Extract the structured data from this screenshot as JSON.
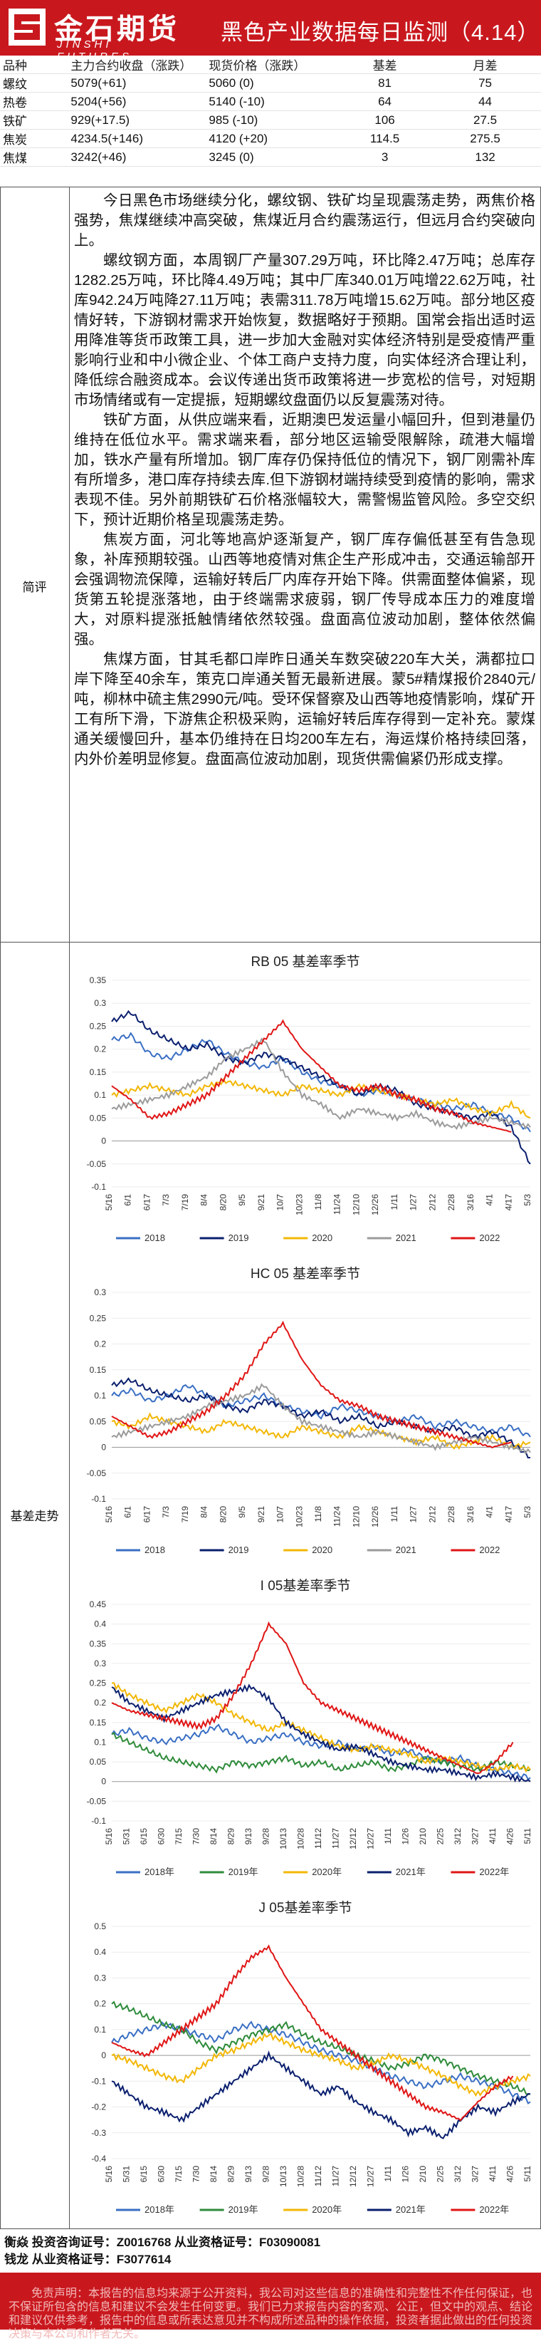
{
  "header": {
    "logo_cn": "金石期货",
    "logo_en": "JINSHI FUTURES",
    "title": "黑色产业数据每日监测（4.14）"
  },
  "price_table": {
    "columns": [
      "品种",
      "主力合约收盘（涨跌）",
      "现货价格（涨跌）",
      "基差",
      "月差"
    ],
    "rows": [
      [
        "螺纹",
        "5079(+61)",
        "5060 (0)",
        "81",
        "75"
      ],
      [
        "热卷",
        "5204(+56)",
        "5140 (-10)",
        "64",
        "44"
      ],
      [
        "铁矿",
        "929(+17.5)",
        "985 (-10)",
        "106",
        "27.5"
      ],
      [
        "焦炭",
        "4234.5(+146)",
        "4120 (+20)",
        "114.5",
        "275.5"
      ],
      [
        "焦煤",
        "3242(+46)",
        "3245 (0)",
        "3",
        "132"
      ]
    ]
  },
  "comment": {
    "label": "简评",
    "paragraphs": [
      "今日黑色市场继续分化，螺纹钢、铁矿均呈现震荡走势，两焦价格强势，焦煤继续冲高突破，焦煤近月合约震荡运行，但远月合约突破向上。",
      "螺纹钢方面，本周钢厂产量307.29万吨，环比降2.47万吨；总库存1282.25万吨，环比降4.49万吨；其中厂库340.01万吨增22.62万吨，社库942.24万吨降27.11万吨；表需311.78万吨增15.62万吨。部分地区疫情好转，下游钢材需求开始恢复，数据略好于预期。国常会指出适时运用降准等货币政策工具，进一步加大金融对实体经济特别是受疫情严重影响行业和中小微企业、个体工商户支持力度，向实体经济合理让利，降低综合融资成本。会议传递出货币政策将进一步宽松的信号，对短期市场情绪或有一定提振，短期螺纹盘面仍以反复震荡对待。",
      "铁矿方面，从供应端来看，近期澳巴发运量小幅回升，但到港量仍维持在低位水平。需求端来看，部分地区运输受限解除，疏港大幅增加，铁水产量有所增加。钢厂库存仍保持低位的情况下，钢厂刚需补库有所增多，港口库存持续去库.但下游钢材端持续受到疫情的影响，需求表现不佳。另外前期铁矿石价格涨幅较大，需警惕监管风险。多空交织下，预计近期价格呈现震荡走势。",
      "焦炭方面，河北等地高炉逐渐复产，钢厂库存偏低甚至有告急现象，补库预期较强。山西等地疫情对焦企生产形成冲击，交通运输部开会强调物流保障，运输好转后厂内库存开始下降。供需面整体偏紧，现货第五轮提涨落地，由于终端需求疲弱，钢厂传导成本压力的难度增大，对原料提涨抵触情绪依然较强。盘面高位波动加剧，整体依然偏强。",
      "焦煤方面，甘其毛都口岸昨日通关车数突破220车大关，满都拉口岸下降至40余车，策克口岸通关暂无最新进展。蒙5#精煤报价2840元/吨，柳林中硫主焦2990元/吨。受环保督察及山西等地疫情影响，煤矿开工有所下滑，下游焦企积极采购，运输好转后库存得到一定补充。蒙煤通关缓慢回升，基本仍维持在日均200车左右，海运煤价格持续回落，内外价差明显修复。盘面高位波动加剧，现货供需偏紧仍形成支撑。"
    ]
  },
  "basis_section": {
    "label": "基差走势"
  },
  "chart_data": [
    {
      "type": "line",
      "title": "RB 05 基差率季节",
      "ylim": [
        -0.1,
        0.35
      ],
      "yticks": [
        "0.35",
        "0.3",
        "0.25",
        "0.2",
        "0.15",
        "0.1",
        "0.05",
        "0",
        "-0.05",
        "-0.1"
      ],
      "xticks": [
        "5/16",
        "6/1",
        "6/17",
        "7/3",
        "7/19",
        "8/4",
        "8/20",
        "9/5",
        "9/21",
        "10/7",
        "10/23",
        "11/8",
        "11/24",
        "12/10",
        "12/26",
        "1/11",
        "1/27",
        "2/12",
        "2/28",
        "3/16",
        "4/1",
        "4/17",
        "5/3"
      ],
      "series": [
        {
          "name": "2018",
          "color": "#3a6fc4",
          "values": [
            0.22,
            0.23,
            0.19,
            0.18,
            0.2,
            0.22,
            0.19,
            0.17,
            0.16,
            0.18,
            0.15,
            0.13,
            0.12,
            0.1,
            0.11,
            0.1,
            0.09,
            0.08,
            0.07,
            0.08,
            0.06,
            0.05,
            0.02
          ]
        },
        {
          "name": "2019",
          "color": "#0a1f6e",
          "values": [
            0.26,
            0.28,
            0.24,
            0.22,
            0.2,
            0.21,
            0.18,
            0.17,
            0.19,
            0.18,
            0.16,
            0.14,
            0.12,
            0.1,
            0.12,
            0.11,
            0.08,
            0.07,
            0.06,
            0.05,
            0.06,
            0.03,
            -0.05
          ]
        },
        {
          "name": "2020",
          "color": "#f2b705",
          "values": [
            0.1,
            0.11,
            0.12,
            0.11,
            0.1,
            0.12,
            0.13,
            0.12,
            0.11,
            0.1,
            0.12,
            0.11,
            0.1,
            0.12,
            0.11,
            0.1,
            0.09,
            0.08,
            0.09,
            0.07,
            0.06,
            0.08,
            0.05
          ]
        },
        {
          "name": "2021",
          "color": "#9b9b9b",
          "values": [
            0.07,
            0.08,
            0.09,
            0.1,
            0.12,
            0.14,
            0.18,
            0.2,
            0.22,
            0.15,
            0.1,
            0.08,
            0.05,
            0.07,
            0.06,
            0.05,
            0.06,
            0.04,
            0.03,
            0.04,
            0.05,
            0.04,
            0.03
          ]
        },
        {
          "name": "2022",
          "color": "#e01515",
          "values": [
            0.12,
            0.09,
            0.05,
            0.06,
            0.08,
            0.1,
            0.14,
            0.18,
            0.22,
            0.26,
            0.2,
            0.16,
            0.12,
            0.11,
            0.12,
            0.1,
            0.09,
            0.07,
            0.06,
            0.04,
            0.03,
            0.02,
            null
          ]
        }
      ],
      "legend_position": "bottom"
    },
    {
      "type": "line",
      "title": "HC 05 基差率季节",
      "ylim": [
        -0.1,
        0.3
      ],
      "yticks": [
        "0.3",
        "0.25",
        "0.2",
        "0.15",
        "0.1",
        "0.05",
        "0",
        "-0.05",
        "-0.1"
      ],
      "xticks": [
        "5/16",
        "6/1",
        "6/17",
        "7/3",
        "7/19",
        "8/4",
        "8/20",
        "9/5",
        "9/21",
        "10/7",
        "10/23",
        "11/8",
        "11/24",
        "12/10",
        "12/26",
        "1/11",
        "1/27",
        "2/12",
        "2/28",
        "3/16",
        "4/1",
        "4/17",
        "5/3"
      ],
      "series": [
        {
          "name": "2018",
          "color": "#3a6fc4",
          "values": [
            0.1,
            0.11,
            0.09,
            0.1,
            0.12,
            0.1,
            0.08,
            0.09,
            0.1,
            0.08,
            0.07,
            0.06,
            0.08,
            0.07,
            0.06,
            0.05,
            0.06,
            0.04,
            0.05,
            0.04,
            0.03,
            0.04,
            0.02
          ]
        },
        {
          "name": "2019",
          "color": "#0a1f6e",
          "values": [
            0.12,
            0.13,
            0.11,
            0.1,
            0.09,
            0.1,
            0.08,
            0.07,
            0.09,
            0.08,
            0.06,
            0.07,
            0.05,
            0.06,
            0.04,
            0.05,
            0.04,
            0.03,
            0.04,
            0.02,
            0.03,
            0.01,
            -0.02
          ]
        },
        {
          "name": "2020",
          "color": "#f2b705",
          "values": [
            0.05,
            0.04,
            0.06,
            0.05,
            0.04,
            0.03,
            0.05,
            0.04,
            0.03,
            0.02,
            0.04,
            0.03,
            0.02,
            0.04,
            0.03,
            0.02,
            0.01,
            0.02,
            0.0,
            0.01,
            0.02,
            0.0,
            0.01
          ]
        },
        {
          "name": "2021",
          "color": "#9b9b9b",
          "values": [
            0.02,
            0.03,
            0.04,
            0.05,
            0.06,
            0.08,
            0.09,
            0.1,
            0.12,
            0.08,
            0.05,
            0.04,
            0.03,
            0.02,
            0.03,
            0.02,
            0.01,
            0.0,
            0.01,
            0.02,
            0.01,
            0.0,
            -0.01
          ]
        },
        {
          "name": "2022",
          "color": "#e01515",
          "values": [
            0.06,
            0.04,
            0.02,
            0.03,
            0.05,
            0.07,
            0.1,
            0.14,
            0.2,
            0.24,
            0.17,
            0.12,
            0.09,
            0.08,
            0.06,
            0.05,
            0.04,
            0.03,
            0.02,
            0.01,
            0.0,
            0.01,
            null
          ]
        }
      ],
      "legend_position": "bottom"
    },
    {
      "type": "line",
      "title": "I 05基差率季节",
      "ylim": [
        -0.1,
        0.45
      ],
      "yticks": [
        "0.45",
        "0.4",
        "0.35",
        "0.3",
        "0.25",
        "0.2",
        "0.15",
        "0.1",
        "0.05",
        "0",
        "-0.05",
        "-0.1"
      ],
      "xticks": [
        "5/16",
        "5/31",
        "6/15",
        "6/30",
        "7/15",
        "7/30",
        "8/14",
        "8/29",
        "9/13",
        "9/28",
        "10/13",
        "10/28",
        "11/12",
        "11/27",
        "12/12",
        "12/27",
        "1/11",
        "1/26",
        "2/10",
        "2/25",
        "3/12",
        "3/27",
        "4/11",
        "4/26",
        "5/11"
      ],
      "series": [
        {
          "name": "2018年",
          "color": "#3a6fc4",
          "values": [
            0.12,
            0.13,
            0.11,
            0.1,
            0.11,
            0.12,
            0.14,
            0.12,
            0.1,
            0.11,
            0.12,
            0.1,
            0.09,
            0.1,
            0.08,
            0.09,
            0.07,
            0.08,
            0.06,
            0.05,
            0.06,
            0.04,
            0.03,
            0.02,
            0.01
          ]
        },
        {
          "name": "2019年",
          "color": "#2e8b3a",
          "values": [
            0.12,
            0.1,
            0.08,
            0.06,
            0.05,
            0.04,
            0.03,
            0.05,
            0.04,
            0.05,
            0.06,
            0.04,
            0.05,
            0.03,
            0.04,
            0.05,
            0.03,
            0.04,
            0.06,
            0.05,
            0.04,
            0.03,
            0.05,
            0.04,
            0.03
          ]
        },
        {
          "name": "2020年",
          "color": "#f2b705",
          "values": [
            0.25,
            0.22,
            0.2,
            0.18,
            0.2,
            0.22,
            0.2,
            0.17,
            0.15,
            0.13,
            0.15,
            0.13,
            0.11,
            0.09,
            0.08,
            0.09,
            0.08,
            0.07,
            0.05,
            0.06,
            0.05,
            0.04,
            0.03,
            0.04,
            0.03
          ]
        },
        {
          "name": "2021年",
          "color": "#0a1f6e",
          "values": [
            0.24,
            0.2,
            0.18,
            0.16,
            0.18,
            0.2,
            0.22,
            0.23,
            0.24,
            0.21,
            0.15,
            0.12,
            0.1,
            0.08,
            0.09,
            0.07,
            0.05,
            0.04,
            0.03,
            0.03,
            0.02,
            0.01,
            0.02,
            0.01,
            0.0
          ]
        },
        {
          "name": "2022年",
          "color": "#e01515",
          "values": [
            0.2,
            0.18,
            0.17,
            0.16,
            0.15,
            0.14,
            0.16,
            0.22,
            0.3,
            0.4,
            0.35,
            0.25,
            0.2,
            0.18,
            0.16,
            0.14,
            0.12,
            0.1,
            0.08,
            0.06,
            0.04,
            0.02,
            0.05,
            0.1,
            null
          ]
        }
      ],
      "legend_position": "bottom"
    },
    {
      "type": "line",
      "title": "J 05基差率季节",
      "ylim": [
        -0.4,
        0.5
      ],
      "yticks": [
        "0.5",
        "0.4",
        "0.3",
        "0.2",
        "0.1",
        "0",
        "-0.1",
        "-0.2",
        "-0.3",
        "-0.4"
      ],
      "xticks": [
        "5/16",
        "5/31",
        "6/15",
        "6/30",
        "7/15",
        "7/30",
        "8/14",
        "8/29",
        "9/13",
        "9/28",
        "10/13",
        "10/28",
        "11/12",
        "11/27",
        "12/12",
        "12/27",
        "1/11",
        "1/26",
        "2/10",
        "2/25",
        "3/12",
        "3/27",
        "4/11",
        "4/26",
        "5/11"
      ],
      "series": [
        {
          "name": "2018年",
          "color": "#3a6fc4",
          "values": [
            0.05,
            0.08,
            0.1,
            0.12,
            0.1,
            0.08,
            0.06,
            0.1,
            0.12,
            0.1,
            0.08,
            0.05,
            0.02,
            0.0,
            -0.02,
            -0.05,
            -0.08,
            -0.1,
            -0.12,
            -0.1,
            -0.08,
            -0.1,
            -0.12,
            -0.15,
            -0.18
          ]
        },
        {
          "name": "2019年",
          "color": "#2e8b3a",
          "values": [
            0.2,
            0.18,
            0.15,
            0.12,
            0.1,
            0.05,
            0.02,
            0.05,
            0.08,
            0.1,
            0.12,
            0.08,
            0.05,
            0.03,
            0.0,
            -0.02,
            -0.05,
            -0.03,
            0.0,
            -0.02,
            -0.05,
            -0.08,
            -0.1,
            -0.12,
            -0.15
          ]
        },
        {
          "name": "2020年",
          "color": "#f2b705",
          "values": [
            0.0,
            -0.02,
            -0.05,
            -0.08,
            -0.1,
            -0.05,
            0.0,
            0.02,
            0.05,
            0.08,
            0.05,
            0.02,
            0.0,
            -0.02,
            -0.05,
            -0.03,
            0.0,
            -0.02,
            -0.05,
            -0.08,
            -0.12,
            -0.15,
            -0.12,
            -0.1,
            -0.08
          ]
        },
        {
          "name": "2021年",
          "color": "#0a1f6e",
          "values": [
            -0.1,
            -0.15,
            -0.2,
            -0.22,
            -0.25,
            -0.2,
            -0.15,
            -0.1,
            -0.05,
            0.0,
            -0.05,
            -0.1,
            -0.15,
            -0.12,
            -0.18,
            -0.22,
            -0.25,
            -0.3,
            -0.28,
            -0.32,
            -0.25,
            -0.2,
            -0.22,
            -0.18,
            -0.15
          ]
        },
        {
          "name": "2022年",
          "color": "#e01515",
          "values": [
            0.05,
            0.02,
            0.0,
            0.05,
            0.1,
            0.15,
            0.2,
            0.3,
            0.38,
            0.42,
            0.3,
            0.2,
            0.1,
            0.05,
            0.0,
            -0.05,
            -0.1,
            -0.15,
            -0.2,
            -0.22,
            -0.25,
            -0.18,
            -0.12,
            -0.08,
            null
          ]
        }
      ],
      "legend_position": "bottom"
    }
  ],
  "footer": {
    "analyst1": "衡焱 投资咨询证号：Z0016768 从业资格证号：F03090081",
    "analyst2": "钱龙 从业资格证号：F3077614",
    "disclaimer": "免责声明：本报告的信息均来源于公开资料，我公司对这些信息的准确性和完整性不作任何保证，也不保证所包含的信息和建议不会发生任何变更。我们已力求报告内容的客观、公正，但文中的观点、结论和建议仅供参考，报告中的信息或所表达意见并不构成所述品种的操作依据，投资者据此做出的任何投资决策与本公司和作者无关。",
    "colors": {
      "brand_red": "#c8181e"
    }
  }
}
